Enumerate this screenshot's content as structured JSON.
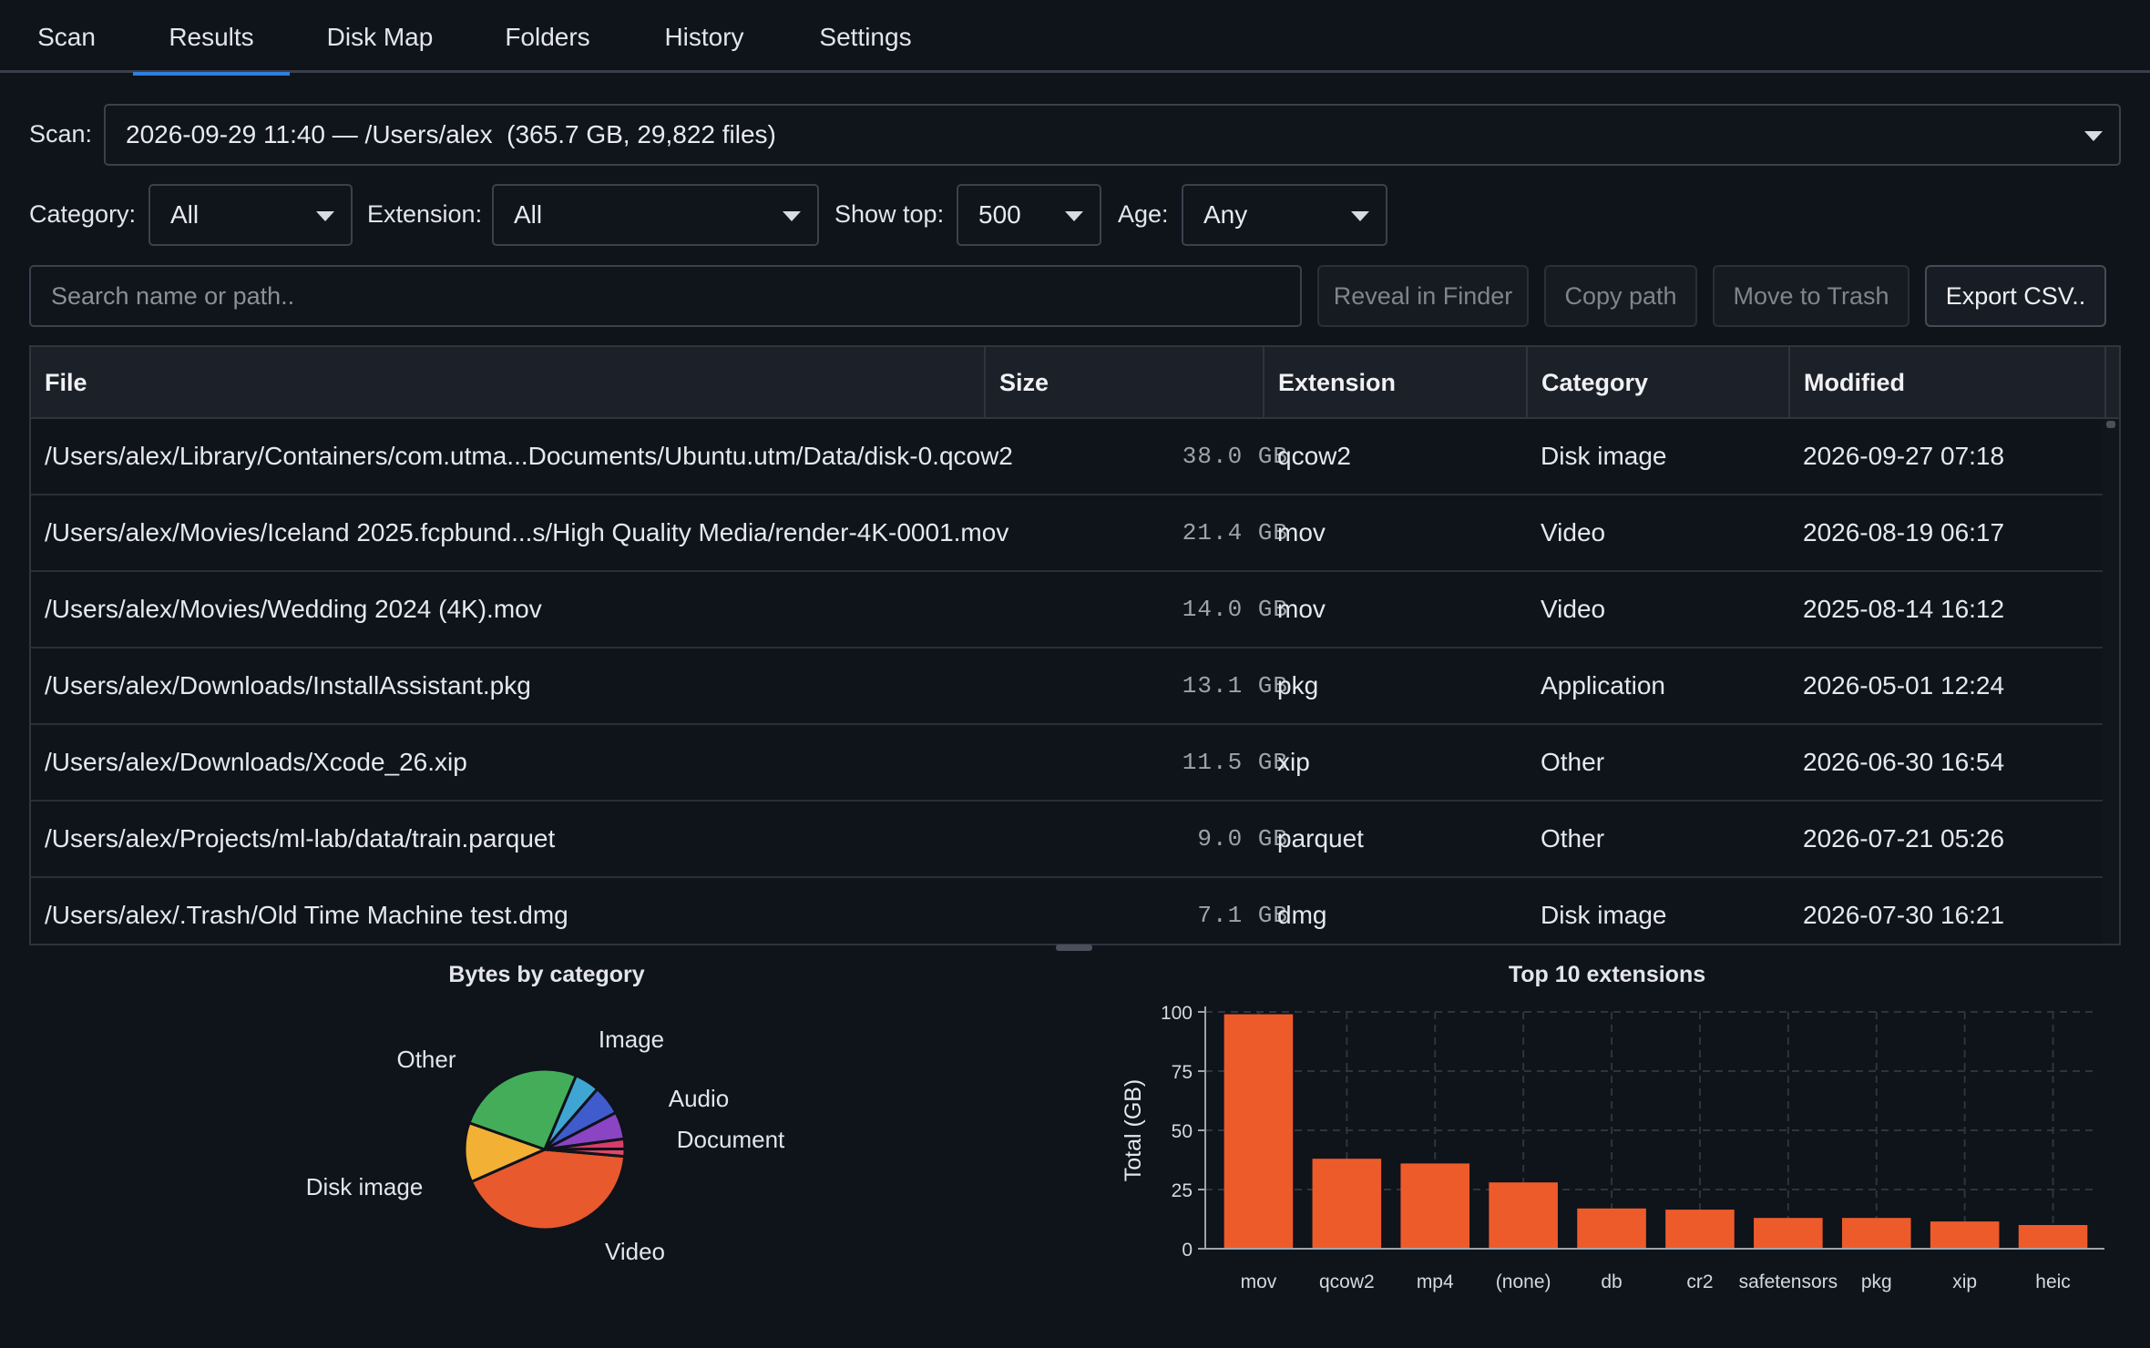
{
  "tabs": [
    {
      "label": "Scan"
    },
    {
      "label": "Results"
    },
    {
      "label": "Disk Map"
    },
    {
      "label": "Folders"
    },
    {
      "label": "History"
    },
    {
      "label": "Settings"
    }
  ],
  "active_tab": "Results",
  "scan": {
    "label": "Scan:",
    "value": "2026-09-29 11:40 — /Users/alex  (365.7 GB, 29,822 files)"
  },
  "filters": {
    "category_label": "Category:",
    "category_value": "All",
    "extension_label": "Extension:",
    "extension_value": "All",
    "show_top_label": "Show top:",
    "show_top_value": "500",
    "age_label": "Age:",
    "age_value": "Any"
  },
  "search": {
    "placeholder": "Search name or path.."
  },
  "actions": {
    "reveal": "Reveal in Finder",
    "copy_path": "Copy path",
    "move_trash": "Move to Trash",
    "export_csv": "Export CSV.."
  },
  "table": {
    "columns": [
      "File",
      "Size",
      "Extension",
      "Category",
      "Modified"
    ],
    "rows": [
      {
        "file": "/Users/alex/Library/Containers/com.utma...Documents/Ubuntu.utm/Data/disk-0.qcow2",
        "size": "38.0 GB",
        "ext": "qcow2",
        "category": "Disk image",
        "modified": "2026-09-27 07:18"
      },
      {
        "file": "/Users/alex/Movies/Iceland 2025.fcpbund...s/High Quality Media/render-4K-0001.mov",
        "size": "21.4 GB",
        "ext": "mov",
        "category": "Video",
        "modified": "2026-08-19 06:17"
      },
      {
        "file": "/Users/alex/Movies/Wedding 2024 (4K).mov",
        "size": "14.0 GB",
        "ext": "mov",
        "category": "Video",
        "modified": "2025-08-14 16:12"
      },
      {
        "file": "/Users/alex/Downloads/InstallAssistant.pkg",
        "size": "13.1 GB",
        "ext": "pkg",
        "category": "Application",
        "modified": "2026-05-01 12:24"
      },
      {
        "file": "/Users/alex/Downloads/Xcode_26.xip",
        "size": "11.5 GB",
        "ext": "xip",
        "category": "Other",
        "modified": "2026-06-30 16:54"
      },
      {
        "file": "/Users/alex/Projects/ml-lab/data/train.parquet",
        "size": "9.0 GB",
        "ext": "parquet",
        "category": "Other",
        "modified": "2026-07-21 05:26"
      },
      {
        "file": "/Users/alex/.Trash/Old Time Machine test.dmg",
        "size": "7.1 GB",
        "ext": "dmg",
        "category": "Disk image",
        "modified": "2026-07-30 16:21"
      }
    ]
  },
  "colors": {
    "accent_tab": "#2f7fe0",
    "bar": "#ee5b2b",
    "pie": {
      "Video": "#e8592e",
      "Disk image": "#f2b035",
      "Other": "#44ad5a",
      "Image": "#3fa6d4",
      "Audio": "#3f5bcc",
      "Document": "#8a44c4",
      "small1": "#d83d6a",
      "small2": "#e0486a"
    }
  },
  "chart_data": [
    {
      "type": "pie",
      "title": "Bytes by category",
      "labels": [
        "Video",
        "Disk image",
        "Other",
        "Image",
        "Audio",
        "Document",
        "",
        ""
      ],
      "values": [
        42,
        12,
        26,
        5,
        6,
        5.5,
        2,
        1.5
      ],
      "shown_labels": [
        "Other",
        "Image",
        "Audio",
        "Document",
        "Disk image",
        "Video"
      ]
    },
    {
      "type": "bar",
      "title": "Top 10 extensions",
      "categories": [
        "mov",
        "qcow2",
        "mp4",
        "(none)",
        "db",
        "cr2",
        "safetensors",
        "pkg",
        "xip",
        "heic"
      ],
      "values": [
        99,
        38,
        36,
        28,
        17,
        16.5,
        13,
        13,
        11.5,
        10
      ],
      "xlabel": "",
      "ylabel": "Total (GB)",
      "ylim": [
        0,
        100
      ],
      "yticks": [
        0,
        25,
        50,
        75,
        100
      ],
      "grid": true
    }
  ]
}
